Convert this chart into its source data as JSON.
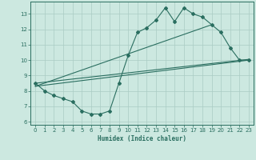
{
  "title": "",
  "xlabel": "Humidex (Indice chaleur)",
  "bg_color": "#cce8e0",
  "grid_color": "#aaccc4",
  "line_color": "#2a6e60",
  "xlim": [
    -0.5,
    23.5
  ],
  "ylim": [
    5.8,
    13.8
  ],
  "xticks": [
    0,
    1,
    2,
    3,
    4,
    5,
    6,
    7,
    8,
    9,
    10,
    11,
    12,
    13,
    14,
    15,
    16,
    17,
    18,
    19,
    20,
    21,
    22,
    23
  ],
  "yticks": [
    6,
    7,
    8,
    9,
    10,
    11,
    12,
    13
  ],
  "zigzag_x": [
    0,
    1,
    2,
    3,
    4,
    5,
    6,
    7,
    8,
    9,
    10,
    11,
    12,
    13,
    14,
    15,
    16,
    17,
    18,
    19,
    20,
    21,
    22,
    23
  ],
  "zigzag_y": [
    8.5,
    8.0,
    7.7,
    7.5,
    7.3,
    6.7,
    6.5,
    6.5,
    6.7,
    8.5,
    10.3,
    11.8,
    12.1,
    12.6,
    13.4,
    12.5,
    13.4,
    13.0,
    12.8,
    12.3,
    11.8,
    10.8,
    10.0,
    10.0
  ],
  "upper_line_x": [
    0,
    19
  ],
  "upper_line_y": [
    8.3,
    12.3
  ],
  "lower_line_x": [
    0,
    23
  ],
  "lower_line_y": [
    8.3,
    10.0
  ],
  "mid_line_x": [
    0,
    23
  ],
  "mid_line_y": [
    8.5,
    10.05
  ]
}
